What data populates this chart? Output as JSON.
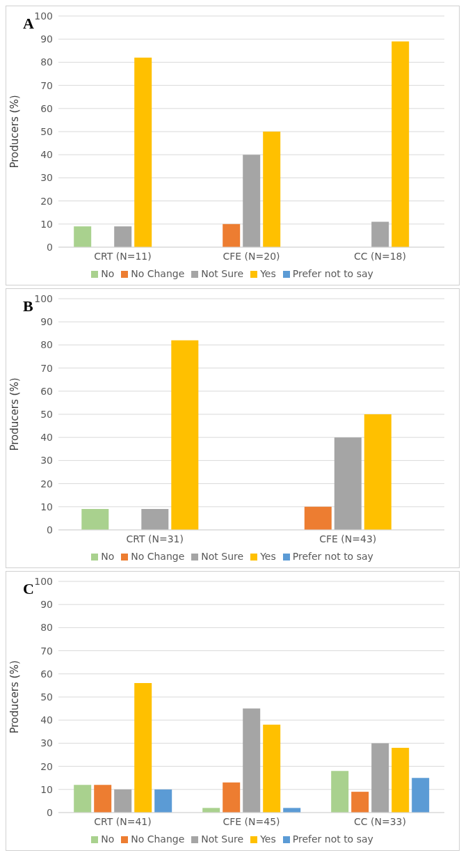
{
  "chart_data": [
    {
      "type": "bar",
      "title": "A",
      "ylabel": "Producers (%)",
      "categories": [
        "CRT (N=11)",
        "CFE (N=20)",
        "CC (N=18)"
      ],
      "ylim": [
        0,
        100
      ],
      "yticks": [
        0,
        10,
        20,
        30,
        40,
        50,
        60,
        70,
        80,
        90,
        100
      ],
      "grid": "y",
      "legend": "bottom",
      "series": [
        {
          "name": "No",
          "color": "#a9d18e",
          "values": [
            9,
            0,
            0
          ]
        },
        {
          "name": "No Change",
          "color": "#ed7d31",
          "values": [
            0,
            10,
            0
          ]
        },
        {
          "name": "Not Sure",
          "color": "#a5a5a5",
          "values": [
            9,
            40,
            11
          ]
        },
        {
          "name": "Yes",
          "color": "#ffc000",
          "values": [
            82,
            50,
            89
          ]
        },
        {
          "name": "Prefer not to say",
          "color": "#5b9bd5",
          "values": [
            0,
            0,
            0
          ]
        }
      ]
    },
    {
      "type": "bar",
      "title": "B",
      "ylabel": "Producers (%)",
      "categories": [
        "CRT (N=31)",
        "CFE (N=43)"
      ],
      "ylim": [
        0,
        100
      ],
      "yticks": [
        0,
        10,
        20,
        30,
        40,
        50,
        60,
        70,
        80,
        90,
        100
      ],
      "grid": "y",
      "legend": "bottom",
      "series": [
        {
          "name": "No",
          "color": "#a9d18e",
          "values": [
            9,
            0
          ]
        },
        {
          "name": "No Change",
          "color": "#ed7d31",
          "values": [
            0,
            10
          ]
        },
        {
          "name": "Not Sure",
          "color": "#a5a5a5",
          "values": [
            9,
            40
          ]
        },
        {
          "name": "Yes",
          "color": "#ffc000",
          "values": [
            82,
            50
          ]
        },
        {
          "name": "Prefer not to say",
          "color": "#5b9bd5",
          "values": [
            0,
            0
          ]
        }
      ]
    },
    {
      "type": "bar",
      "title": "C",
      "ylabel": "Producers (%)",
      "categories": [
        "CRT (N=41)",
        "CFE (N=45)",
        "CC (N=33)"
      ],
      "ylim": [
        0,
        100
      ],
      "yticks": [
        0,
        10,
        20,
        30,
        40,
        50,
        60,
        70,
        80,
        90,
        100
      ],
      "grid": "y",
      "legend": "bottom",
      "series": [
        {
          "name": "No",
          "color": "#a9d18e",
          "values": [
            12,
            2,
            18
          ]
        },
        {
          "name": "No Change",
          "color": "#ed7d31",
          "values": [
            12,
            13,
            9
          ]
        },
        {
          "name": "Not Sure",
          "color": "#a5a5a5",
          "values": [
            10,
            45,
            30
          ]
        },
        {
          "name": "Yes",
          "color": "#ffc000",
          "values": [
            56,
            38,
            28
          ]
        },
        {
          "name": "Prefer not to say",
          "color": "#5b9bd5",
          "values": [
            10,
            2,
            15
          ]
        }
      ]
    }
  ]
}
